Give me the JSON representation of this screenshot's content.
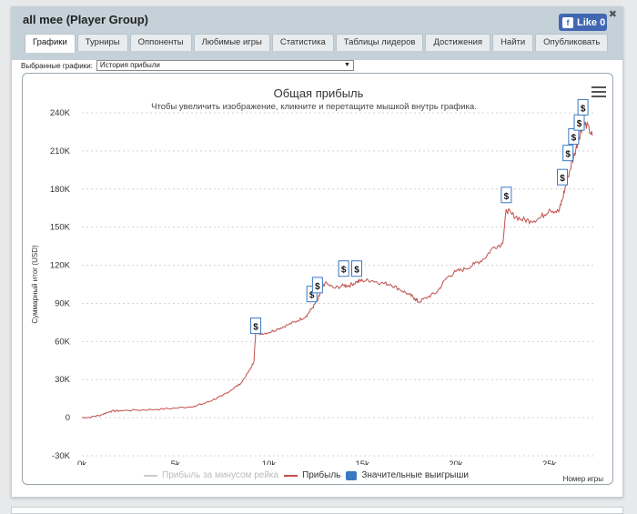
{
  "window": {
    "title": "all mee (Player Group)",
    "close_label": "✖"
  },
  "facebook": {
    "label": "Like 0"
  },
  "tabs": [
    {
      "label": "Графики"
    },
    {
      "label": "Турниры"
    },
    {
      "label": "Оппоненты"
    },
    {
      "label": "Любимые игры"
    },
    {
      "label": "Статистика"
    },
    {
      "label": "Таблицы лидеров"
    },
    {
      "label": "Достижения"
    },
    {
      "label": "Найти"
    },
    {
      "label": "Опубликовать"
    }
  ],
  "selector": {
    "label": "Выбранные графики:",
    "value": "История прибыли"
  },
  "chart_data": {
    "type": "line",
    "title": "Общая прибыль",
    "subtitle": "Чтобы увеличить изображение, кликните и перетащите мышкой внутрь графика.",
    "xlabel": "Номер игры",
    "ylabel": "Суммарный итог (USD)",
    "xlim": [
      0,
      27500
    ],
    "ylim": [
      -30000,
      240000
    ],
    "x_ticks": [
      0,
      5000,
      10000,
      15000,
      20000,
      25000
    ],
    "x_tick_labels": [
      "0k",
      "5k",
      "10k",
      "15k",
      "20k",
      "25k"
    ],
    "y_ticks": [
      -30000,
      0,
      30000,
      60000,
      90000,
      120000,
      150000,
      180000,
      210000,
      240000
    ],
    "y_tick_labels": [
      "-30K",
      "0",
      "30K",
      "60K",
      "90K",
      "120K",
      "150K",
      "180K",
      "210K",
      "240K"
    ],
    "series": [
      {
        "name": "Прибыль",
        "color": "#c0504d",
        "points": [
          [
            0,
            0
          ],
          [
            500,
            500
          ],
          [
            1000,
            2000
          ],
          [
            1500,
            5000
          ],
          [
            2000,
            5500
          ],
          [
            3000,
            6000
          ],
          [
            4000,
            6500
          ],
          [
            5000,
            7500
          ],
          [
            6000,
            9000
          ],
          [
            6500,
            11000
          ],
          [
            7000,
            14000
          ],
          [
            7500,
            17000
          ],
          [
            8000,
            22000
          ],
          [
            8500,
            27000
          ],
          [
            9000,
            38000
          ],
          [
            9200,
            44000
          ],
          [
            9300,
            68000
          ],
          [
            9500,
            66000
          ],
          [
            10000,
            67000
          ],
          [
            10500,
            70000
          ],
          [
            11000,
            73000
          ],
          [
            11500,
            76000
          ],
          [
            12000,
            80000
          ],
          [
            12300,
            86000
          ],
          [
            12600,
            92000
          ],
          [
            12800,
            100000
          ],
          [
            13000,
            106000
          ],
          [
            13500,
            102000
          ],
          [
            14000,
            104000
          ],
          [
            14300,
            104000
          ],
          [
            14700,
            107000
          ],
          [
            15000,
            108000
          ],
          [
            15500,
            108000
          ],
          [
            16000,
            106000
          ],
          [
            16500,
            105000
          ],
          [
            17000,
            101000
          ],
          [
            17500,
            97000
          ],
          [
            17800,
            94000
          ],
          [
            18000,
            91000
          ],
          [
            18500,
            95000
          ],
          [
            19000,
            99000
          ],
          [
            19500,
            110000
          ],
          [
            20000,
            115000
          ],
          [
            20500,
            117000
          ],
          [
            21000,
            121000
          ],
          [
            21500,
            125000
          ],
          [
            22000,
            134000
          ],
          [
            22500,
            137000
          ],
          [
            22700,
            164000
          ],
          [
            23000,
            160000
          ],
          [
            23500,
            156000
          ],
          [
            24000,
            155000
          ],
          [
            24500,
            157000
          ],
          [
            25000,
            164000
          ],
          [
            25500,
            162000
          ],
          [
            25700,
            172000
          ],
          [
            26000,
            190000
          ],
          [
            26300,
            205000
          ],
          [
            26600,
            221000
          ],
          [
            26800,
            232000
          ],
          [
            27000,
            230000
          ],
          [
            27300,
            222000
          ]
        ]
      },
      {
        "name": "Прибыль за минусом рейка",
        "color": "#cccccc"
      }
    ],
    "big_wins": {
      "name": "Значительные выигрыши",
      "color": "#3a78c2",
      "symbol": "$",
      "points": [
        [
          9300,
          72000
        ],
        [
          12300,
          97000
        ],
        [
          12600,
          104000
        ],
        [
          14000,
          117000
        ],
        [
          14700,
          117000
        ],
        [
          22700,
          175000
        ],
        [
          25700,
          189000
        ],
        [
          26000,
          208000
        ],
        [
          26300,
          221000
        ],
        [
          26600,
          232000
        ],
        [
          26800,
          244000
        ]
      ]
    }
  }
}
